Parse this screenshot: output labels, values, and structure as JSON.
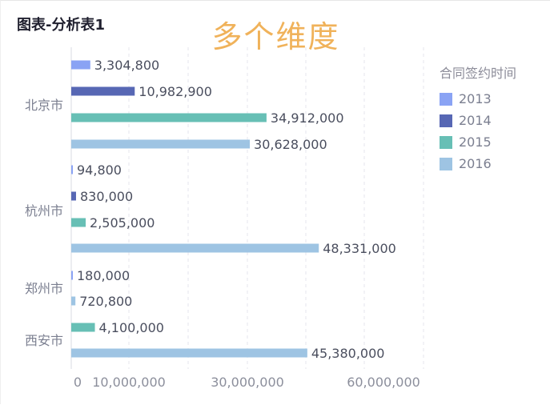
{
  "panel": {
    "title": "图表-分析表1"
  },
  "chart_data": {
    "type": "bar",
    "orientation": "horizontal",
    "title": "多个维度",
    "legend_title": "合同签约时间",
    "legend_position": "top-right",
    "categories": [
      "北京市",
      "杭州市",
      "郑州市",
      "西安市"
    ],
    "series": [
      {
        "name": "2013",
        "color": "#8aa3f4",
        "values": [
          3304800,
          94800,
          180000,
          null
        ]
      },
      {
        "name": "2014",
        "color": "#5767b4",
        "values": [
          10982900,
          830000,
          null,
          null
        ]
      },
      {
        "name": "2015",
        "color": "#67bfb5",
        "values": [
          34912000,
          2505000,
          null,
          4100000
        ]
      },
      {
        "name": "2016",
        "color": "#9ec4e3",
        "values": [
          30628000,
          48331000,
          720800,
          45380000
        ]
      }
    ],
    "bars": [
      {
        "category": "北京市",
        "series": "2013",
        "value": 3304800,
        "label": "3,304,800"
      },
      {
        "category": "北京市",
        "series": "2014",
        "value": 10982900,
        "label": "10,982,900"
      },
      {
        "category": "北京市",
        "series": "2015",
        "value": 34912000,
        "label": "34,912,000"
      },
      {
        "category": "北京市",
        "series": "2016",
        "value": 30628000,
        "label": "30,628,000"
      },
      {
        "category": "杭州市",
        "series": "2013",
        "value": 94800,
        "label": "94,800"
      },
      {
        "category": "杭州市",
        "series": "2014",
        "value": 830000,
        "label": "830,000"
      },
      {
        "category": "杭州市",
        "series": "2015",
        "value": 2505000,
        "label": "2,505,000"
      },
      {
        "category": "杭州市",
        "series": "2016",
        "value": 48331000,
        "label": "48,331,000"
      },
      {
        "category": "郑州市",
        "series": "2013",
        "value": 180000,
        "label": "180,000"
      },
      {
        "category": "郑州市",
        "series": "2016",
        "value": 720800,
        "label": "720,800"
      },
      {
        "category": "西安市",
        "series": "2015",
        "value": 4100000,
        "label": "4,100,000"
      },
      {
        "category": "西安市",
        "series": "2016",
        "value": 45380000,
        "label": "45,380,000"
      }
    ],
    "x_ticks": [
      {
        "value": 0,
        "label": "0"
      },
      {
        "value": 10000000,
        "label": "10,000,000"
      },
      {
        "value": 30000000,
        "label": "30,000,000"
      },
      {
        "value": 60000000,
        "label": "60,000,000"
      }
    ],
    "xlim": [
      0,
      60000000
    ],
    "grid": true
  }
}
